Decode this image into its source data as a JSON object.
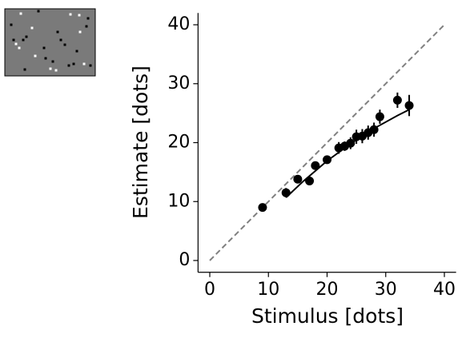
{
  "chart_data": {
    "type": "scatter",
    "xlabel": "Stimulus [dots]",
    "ylabel": "Estimate [dots]",
    "xlim": [
      -2,
      42
    ],
    "ylim": [
      -2,
      42
    ],
    "xticks": [
      0,
      10,
      20,
      30,
      40
    ],
    "yticks": [
      0,
      10,
      20,
      30,
      40
    ],
    "points": {
      "color": "#000000",
      "x": [
        9,
        13,
        15,
        17,
        18,
        20,
        22,
        23,
        24,
        25,
        26,
        27,
        28,
        29,
        32,
        34
      ],
      "y": [
        9,
        11.5,
        13.8,
        13.5,
        16.1,
        17.1,
        19.1,
        19.4,
        19.9,
        21,
        21.1,
        21.7,
        22.2,
        24.4,
        27.2,
        26.3
      ],
      "yerr": [
        0.4,
        0.8,
        0.5,
        0.6,
        0.6,
        0.6,
        1.0,
        0.8,
        1.0,
        1.2,
        1.2,
        1.2,
        1.2,
        1.2,
        1.3,
        1.8
      ]
    },
    "fit": {
      "color": "#000000",
      "x": [
        13,
        16,
        20,
        24,
        28,
        32,
        34
      ],
      "y": [
        10.7,
        13.5,
        16.9,
        19.8,
        22.4,
        24.6,
        25.6
      ]
    },
    "reference": {
      "color": "#808080",
      "dashed": true,
      "x": [
        0,
        40
      ],
      "y": [
        0,
        40
      ]
    }
  }
}
